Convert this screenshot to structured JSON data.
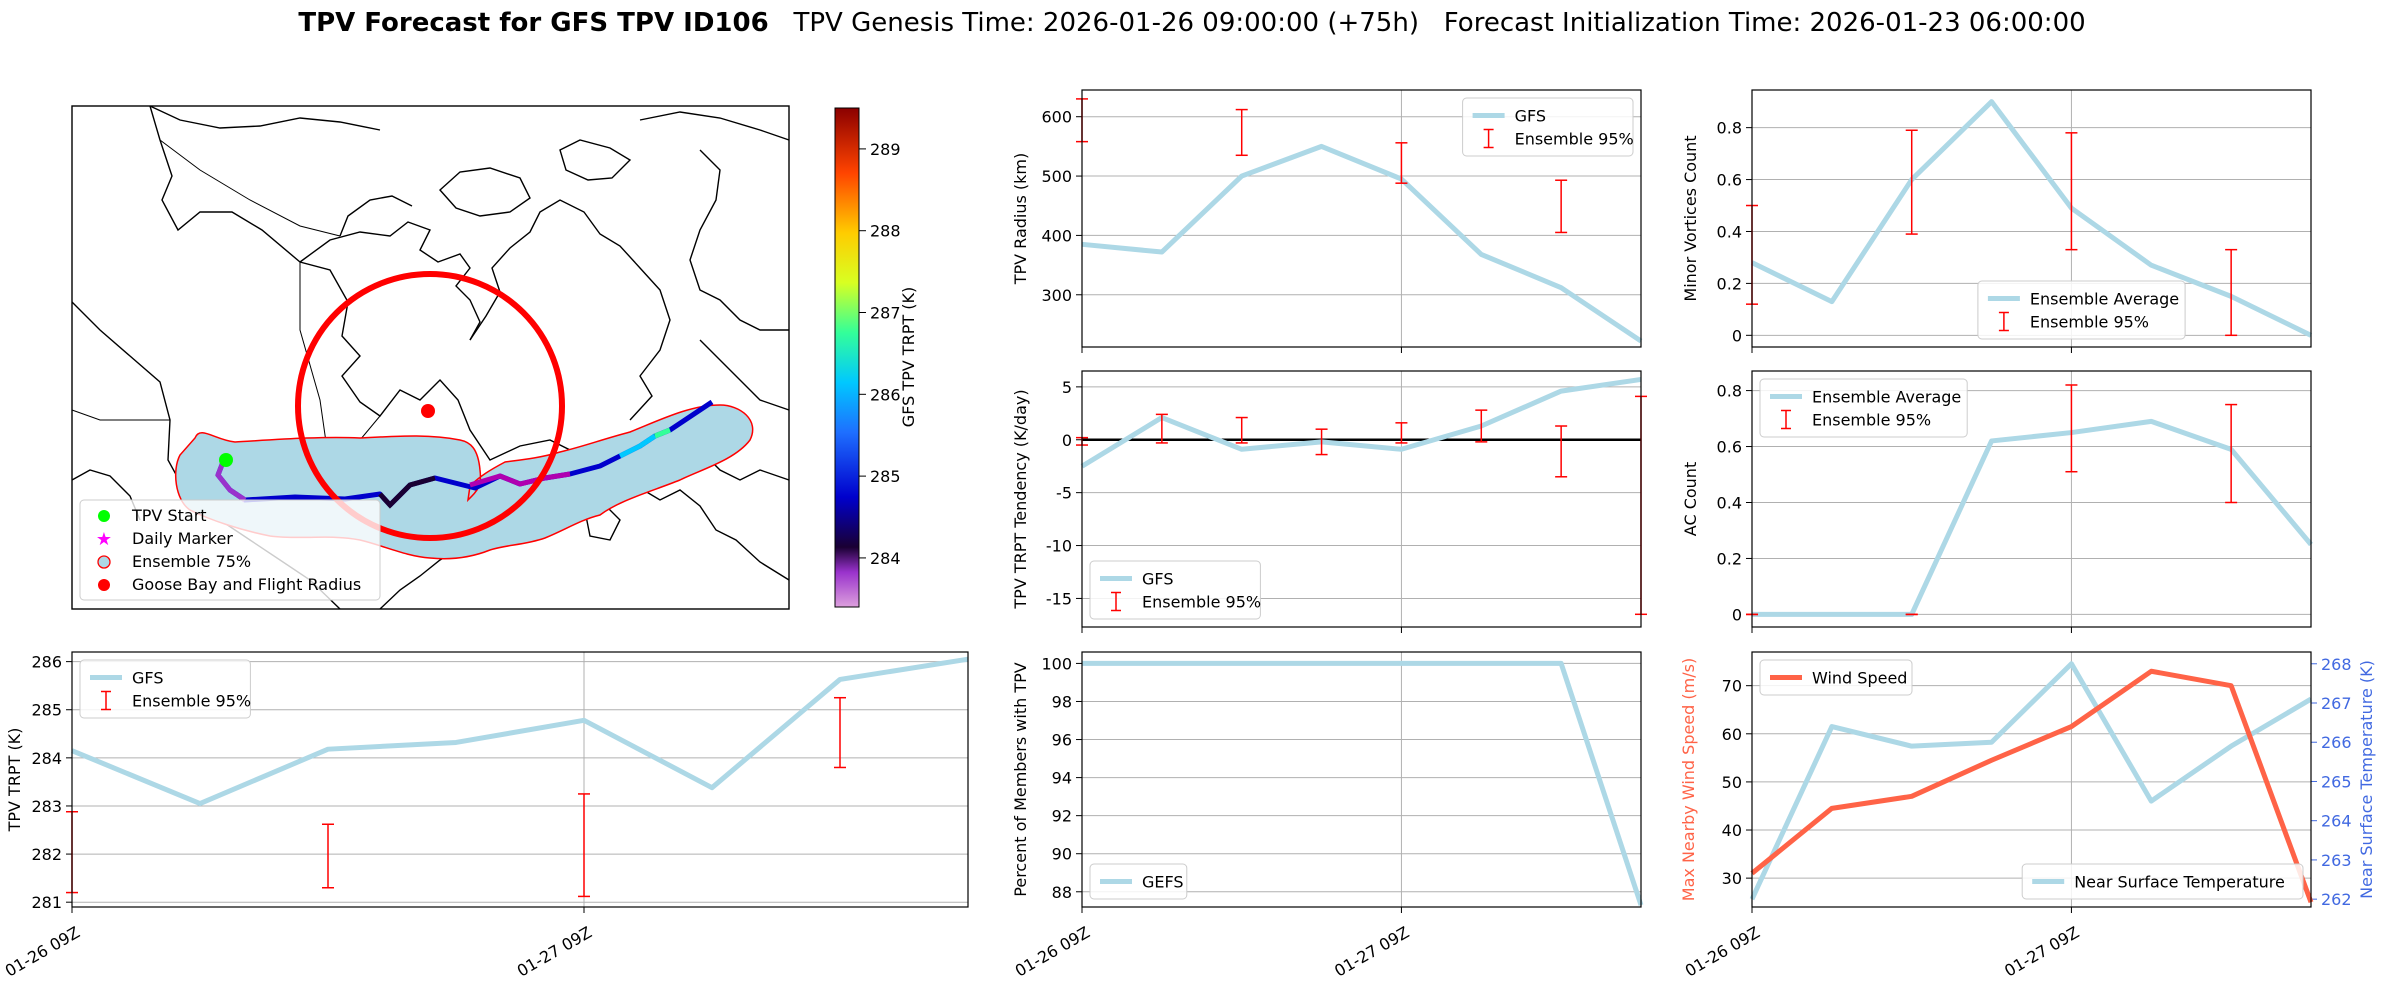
{
  "title": {
    "main": "TPV Forecast for GFS TPV ID106",
    "genesis": "TPV Genesis Time: 2026-01-26 09:00:00 (+75h)",
    "init": "Forecast Initialization Time: 2026-01-23 06:00:00"
  },
  "colors": {
    "line": "#add8e6",
    "err": "#ff0000",
    "wind": "#ff6347",
    "temp_axis": "#4169e1",
    "grid": "#b0b0b0"
  },
  "map": {
    "colorbar_label": "GFS TPV TRPT (K)",
    "colorbar_ticks": [
      284,
      285,
      286,
      287,
      288,
      289
    ],
    "colorbar_range": [
      283.4,
      289.5
    ],
    "legend": [
      "TPV Start",
      "Daily Marker",
      "Ensemble 75%",
      "Goose Bay and Flight Radius"
    ]
  },
  "x_ticks": [
    "01-26 09Z",
    "01-27 09Z"
  ],
  "chart_data": [
    {
      "id": "radius",
      "type": "line",
      "ylabel": "TPV Radius (km)",
      "ylim": [
        212,
        645
      ],
      "yticks": [
        300,
        400,
        500,
        600
      ],
      "xlim": [
        0,
        7
      ],
      "vgrid": [
        4
      ],
      "x": [
        0,
        1,
        2,
        3,
        4,
        5,
        6,
        7
      ],
      "values": [
        385,
        372,
        500,
        550,
        495,
        368,
        312,
        222
      ],
      "errors": [
        {
          "x": 0,
          "lo": 558,
          "hi": 630
        },
        {
          "x": 2,
          "lo": 535,
          "hi": 612
        },
        {
          "x": 4,
          "lo": 488,
          "hi": 556
        },
        {
          "x": 6,
          "lo": 405,
          "hi": 493
        }
      ],
      "legend": {
        "pos": "top-right",
        "line": "GFS",
        "err": "Ensemble 95%"
      }
    },
    {
      "id": "minor",
      "type": "line",
      "ylabel": "Minor Vortices Count",
      "ylim": [
        -0.045,
        0.945
      ],
      "yticks": [
        0.0,
        0.2,
        0.4,
        0.6,
        0.8
      ],
      "xlim": [
        0,
        7
      ],
      "vgrid": [
        4
      ],
      "x": [
        0,
        1,
        2,
        3,
        4,
        5,
        6,
        7
      ],
      "values": [
        0.28,
        0.13,
        0.6,
        0.9,
        0.49,
        0.27,
        0.15,
        0.0
      ],
      "errors": [
        {
          "x": 0,
          "lo": 0.12,
          "hi": 0.5
        },
        {
          "x": 2,
          "lo": 0.39,
          "hi": 0.79
        },
        {
          "x": 4,
          "lo": 0.33,
          "hi": 0.78
        },
        {
          "x": 6,
          "lo": 0.0,
          "hi": 0.33
        }
      ],
      "legend": {
        "pos": "bottom-center",
        "line": "Ensemble Average",
        "err": "Ensemble 95%"
      }
    },
    {
      "id": "tendency",
      "type": "line",
      "ylabel": "TPV TRPT Tendency (K/day)",
      "ylim": [
        -17.7,
        6.5
      ],
      "yticks": [
        -15,
        -10,
        -5,
        0,
        5
      ],
      "xlim": [
        0,
        7
      ],
      "vgrid": [
        4
      ],
      "zeroline": 0,
      "x": [
        0,
        1,
        2,
        3,
        4,
        5,
        6,
        7
      ],
      "values": [
        -2.5,
        2.1,
        -0.9,
        -0.2,
        -0.9,
        1.3,
        4.6,
        5.7
      ],
      "errors": [
        {
          "x": 0,
          "lo": -0.5,
          "hi": 0.2
        },
        {
          "x": 1,
          "lo": -0.3,
          "hi": 2.4
        },
        {
          "x": 2,
          "lo": -0.3,
          "hi": 2.1
        },
        {
          "x": 3,
          "lo": -1.4,
          "hi": 1.0
        },
        {
          "x": 4,
          "lo": -0.3,
          "hi": 1.6
        },
        {
          "x": 5,
          "lo": -0.2,
          "hi": 2.8
        },
        {
          "x": 6,
          "lo": -3.5,
          "hi": 1.3
        },
        {
          "x": 7,
          "lo": -16.5,
          "hi": 4.1
        }
      ],
      "legend": {
        "pos": "bottom-left",
        "line": "GFS",
        "err": "Ensemble 95%"
      }
    },
    {
      "id": "ac",
      "type": "line",
      "ylabel": "AC Count",
      "ylim": [
        -0.045,
        0.87
      ],
      "yticks": [
        0.0,
        0.2,
        0.4,
        0.6,
        0.8
      ],
      "xlim": [
        0,
        7
      ],
      "vgrid": [
        4
      ],
      "x": [
        0,
        1,
        2,
        3,
        4,
        5,
        6,
        7
      ],
      "values": [
        0.0,
        0.0,
        0.0,
        0.62,
        0.65,
        0.69,
        0.59,
        0.25
      ],
      "errors": [
        {
          "x": 0,
          "lo": 0.0,
          "hi": 0.0
        },
        {
          "x": 2,
          "lo": 0.0,
          "hi": 0.0
        },
        {
          "x": 4,
          "lo": 0.51,
          "hi": 0.82
        },
        {
          "x": 6,
          "lo": 0.4,
          "hi": 0.75
        }
      ],
      "legend": {
        "pos": "top-left",
        "line": "Ensemble Average",
        "err": "Ensemble 95%"
      }
    },
    {
      "id": "trpt",
      "type": "line",
      "ylabel": "TPV TRPT (K)",
      "ylim": [
        280.9,
        286.2
      ],
      "yticks": [
        281,
        282,
        283,
        284,
        285,
        286
      ],
      "xlim": [
        0,
        7
      ],
      "vgrid": [
        4
      ],
      "x": [
        0,
        1,
        2,
        3,
        4,
        5,
        6,
        7
      ],
      "values": [
        284.15,
        283.05,
        284.18,
        284.32,
        284.78,
        283.38,
        285.63,
        286.05
      ],
      "errors": [
        {
          "x": 0,
          "lo": 281.2,
          "hi": 282.88
        },
        {
          "x": 2,
          "lo": 281.3,
          "hi": 282.62
        },
        {
          "x": 4,
          "lo": 281.12,
          "hi": 283.25
        },
        {
          "x": 6,
          "lo": 283.8,
          "hi": 285.25
        }
      ],
      "legend": {
        "pos": "top-left",
        "line": "GFS",
        "err": "Ensemble 95%"
      }
    },
    {
      "id": "percent",
      "type": "line",
      "ylabel": "Percent of Members with TPV",
      "ylim": [
        87.2,
        100.6
      ],
      "yticks": [
        88,
        90,
        92,
        94,
        96,
        98,
        100
      ],
      "xlim": [
        0,
        7
      ],
      "vgrid": [
        4
      ],
      "x": [
        0,
        1,
        2,
        3,
        4,
        5,
        6,
        7
      ],
      "values": [
        100,
        100,
        100,
        100,
        100,
        100,
        100,
        87.3
      ],
      "errors": [],
      "legend": {
        "pos": "bottom-left",
        "line": "GEFS",
        "err": ""
      }
    },
    {
      "id": "wind",
      "type": "line",
      "ylabel": "Max Nearby Wind Speed (m/s)",
      "ylim": [
        24,
        77
      ],
      "yticks": [
        30,
        40,
        50,
        60,
        70
      ],
      "xlim": [
        0,
        7
      ],
      "vgrid": [
        4
      ],
      "x": [
        0,
        1,
        2,
        3,
        4,
        5,
        6,
        7
      ],
      "values": [
        31,
        44.5,
        47,
        54.5,
        61.5,
        73,
        70,
        25
      ],
      "y2label": "Near Surface Temperature (K)",
      "y2lim": [
        261.8,
        268.3
      ],
      "y2ticks": [
        262,
        263,
        264,
        265,
        266,
        267,
        268
      ],
      "values2": [
        262.0,
        266.4,
        265.9,
        266.0,
        268.0,
        264.5,
        265.9,
        267.1
      ],
      "legend": {
        "pos": "top-left",
        "line": "Wind Speed",
        "line2": "Near Surface Temperature"
      }
    }
  ]
}
